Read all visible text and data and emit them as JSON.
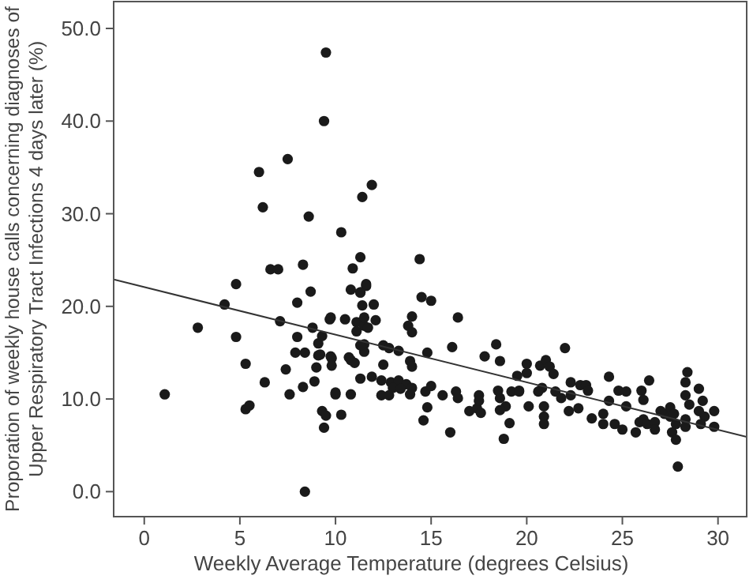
{
  "chart_data": {
    "type": "scatter",
    "xlabel": "Weekly Average Temperature (degrees Celsius)",
    "ylabel": "Proporation of weekly house calls concerning diagnoses of Upper Respiratory Tract Infections 4 days later (%)",
    "xlim": [
      -1.6,
      31.5
    ],
    "ylim": [
      -2.7,
      52.9
    ],
    "xticks": [
      0,
      5,
      10,
      15,
      20,
      25,
      30
    ],
    "yticks": [
      {
        "value": 0,
        "label": "0.0"
      },
      {
        "value": 10,
        "label": "10.0"
      },
      {
        "value": 20,
        "label": "20.0"
      },
      {
        "value": 30,
        "label": "30.0"
      },
      {
        "value": 40,
        "label": "40.0"
      },
      {
        "value": 50,
        "label": "50.0"
      }
    ],
    "marker": "circle",
    "series": [
      {
        "color": "#1a1a1a",
        "x": [
          1.07,
          2.8,
          4.2,
          4.8,
          4.8,
          5.3,
          5.3,
          5.5,
          6.0,
          6.2,
          6.3,
          6.6,
          7.0,
          7.1,
          7.4,
          7.5,
          7.6,
          8.0,
          8.0,
          7.9,
          8.4,
          8.3,
          8.3,
          8.4,
          8.6,
          8.7,
          8.8,
          8.9,
          9.0,
          9.1,
          9.1,
          9.3,
          9.3,
          9.5,
          9.4,
          9.4,
          9.5,
          9.7,
          9.8,
          9.8,
          10.0,
          10.3,
          10.3,
          10.5,
          10.8,
          10.8,
          10.8,
          11.0,
          10.9,
          11.1,
          11.3,
          11.3,
          11.4,
          11.5,
          11.3,
          11.5,
          11.5,
          11.6,
          11.9,
          14.4,
          11.3,
          11.6,
          11.4,
          12.0,
          9.75,
          11.5,
          12.1,
          11.1,
          11.7,
          14.5,
          15.0,
          14.0,
          16.4,
          13.8,
          14.0,
          11.3,
          12.5,
          13.3,
          9.2,
          9.75,
          10.7,
          12.8,
          14.8,
          13.9,
          14.0,
          16.1,
          17.8,
          18.4,
          18.6,
          12.5,
          11.9,
          12.4,
          12.9,
          13.3,
          13.7,
          14.0,
          13.0,
          13.4,
          12.4,
          12.8,
          13.9,
          14.7,
          15.0,
          10.0,
          15.6,
          16.3,
          16.4,
          17.0,
          17.4,
          17.6,
          17.5,
          17.5,
          18.5,
          18.6,
          18.9,
          19.2,
          19.6,
          18.6,
          14.8,
          14.6,
          16.0,
          18.8,
          19.1,
          19.5,
          20.0,
          20.1,
          22.0,
          20.7,
          21.0,
          21.2,
          21.4,
          20.0,
          20.8,
          21.5,
          19.6,
          20.6,
          22.3,
          22.8,
          23.1,
          23.2,
          21.8,
          22.3,
          22.2,
          22.7,
          20.9,
          20.9,
          20.9,
          23.4,
          24.0,
          24.0,
          24.3,
          24.8,
          25.2,
          25.2,
          24.3,
          24.6,
          25.0,
          25.7,
          25.9,
          26.1,
          26.3,
          26.0,
          26.1,
          26.4,
          26.7,
          26.7,
          27.0,
          27.2,
          27.5,
          27.5,
          27.7,
          27.8,
          27.6,
          27.8,
          27.9,
          28.4,
          28.3,
          28.3,
          28.5,
          28.3,
          28.3,
          29.0,
          29.2,
          29.0,
          29.3,
          29.8,
          29.1,
          29.8
        ],
        "values": [
          10.5,
          17.7,
          20.2,
          22.4,
          16.7,
          13.8,
          8.9,
          9.3,
          34.5,
          30.7,
          11.8,
          24.0,
          24.0,
          18.4,
          13.2,
          35.9,
          10.5,
          20.4,
          16.7,
          15.0,
          15.0,
          24.5,
          11.3,
          0,
          29.7,
          21.6,
          17.7,
          11.9,
          13.4,
          16.0,
          14.7,
          16.8,
          8.7,
          8.2,
          6.9,
          40.0,
          47.4,
          18.6,
          14.4,
          13.6,
          10.5,
          8.3,
          28.0,
          18.6,
          10.5,
          21.8,
          14.2,
          13.9,
          24.1,
          18.3,
          12.2,
          25.3,
          31.8,
          17.9,
          21.5,
          15.9,
          15.1,
          22.2,
          33.1,
          25.1,
          21.5,
          22.4,
          20.1,
          20.2,
          18.8,
          18.8,
          18.5,
          17.3,
          17.7,
          21.0,
          20.6,
          18.9,
          18.8,
          17.9,
          17.2,
          15.8,
          15.8,
          15.2,
          14.8,
          14.6,
          14.5,
          15.5,
          15.0,
          14.1,
          13.5,
          15.6,
          14.6,
          15.9,
          14.1,
          13.7,
          12.4,
          12.0,
          11.8,
          12.0,
          11.6,
          11.2,
          11.2,
          11.1,
          10.4,
          10.4,
          10.5,
          10.8,
          11.4,
          10.7,
          10.4,
          10.8,
          10.1,
          8.7,
          9.0,
          8.5,
          10.4,
          9.8,
          10.9,
          10.1,
          9.2,
          10.8,
          10.9,
          8.8,
          9.1,
          7.7,
          6.4,
          5.7,
          7.4,
          12.5,
          13.8,
          9.2,
          15.5,
          13.6,
          14.2,
          13.5,
          12.7,
          12.8,
          11.2,
          10.8,
          10.8,
          10.8,
          11.8,
          11.5,
          11.5,
          10.9,
          10.1,
          10.4,
          8.7,
          9.0,
          9.2,
          8.1,
          7.3,
          7.9,
          8.4,
          7.3,
          12.4,
          10.9,
          10.8,
          9.2,
          9.8,
          7.3,
          6.7,
          6.4,
          7.5,
          7.8,
          7.3,
          10.9,
          9.9,
          12.0,
          7.5,
          6.7,
          8.7,
          8.4,
          9.1,
          8.1,
          8.4,
          7.3,
          6.4,
          5.6,
          2.7,
          12.9,
          11.8,
          10.4,
          9.4,
          7.8,
          7.0,
          11.1,
          9.8,
          8.7,
          8.1,
          8.7,
          7.3,
          7.0
        ]
      },
      {
        "type": "line",
        "color": "#333333",
        "marker": "none",
        "x": [
          -1.6,
          31.5
        ],
        "values": [
          22.9,
          5.9
        ]
      }
    ]
  }
}
